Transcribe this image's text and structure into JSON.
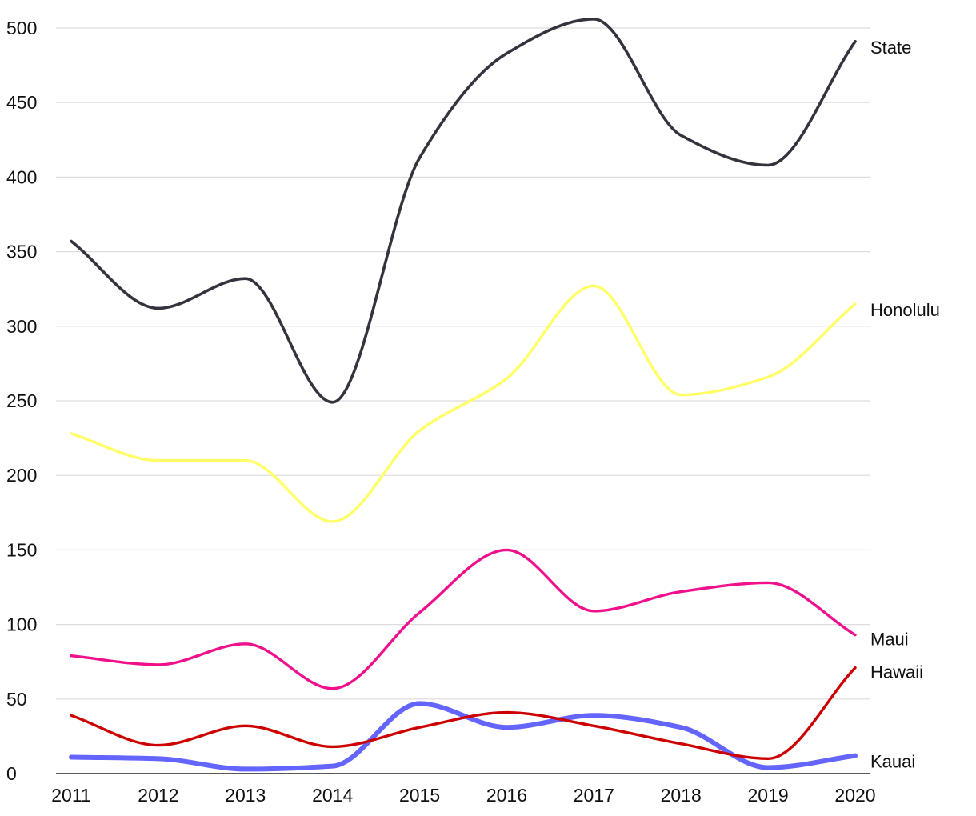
{
  "chart_data": {
    "type": "line",
    "title": "",
    "xlabel": "",
    "ylabel": "",
    "x": [
      "2011",
      "2012",
      "2013",
      "2014",
      "2015",
      "2016",
      "2017",
      "2018",
      "2019",
      "2020"
    ],
    "y_ticks": [
      "0",
      "50",
      "100",
      "150",
      "200",
      "250",
      "300",
      "350",
      "400",
      "450",
      "500"
    ],
    "ylim": [
      0,
      500
    ],
    "grid": true,
    "legend": "direct labels at line ends (right)",
    "series": [
      {
        "name": "State",
        "color": "#34343f",
        "values": [
          357,
          312,
          332,
          249,
          413,
          483,
          506,
          428,
          408,
          491
        ]
      },
      {
        "name": "Honolulu",
        "color": "#ffff66",
        "values": [
          228,
          210,
          210,
          169,
          230,
          265,
          327,
          254,
          266,
          315
        ]
      },
      {
        "name": "Maui",
        "color": "#f0108c",
        "values": [
          79,
          73,
          87,
          57,
          108,
          150,
          109,
          122,
          128,
          93
        ]
      },
      {
        "name": "Hawaii",
        "color": "#cc0000",
        "values": [
          39,
          19,
          32,
          18,
          31,
          41,
          32,
          20,
          10,
          71
        ]
      },
      {
        "name": "Kauai",
        "color": "#6464ff",
        "values": [
          11,
          10,
          3,
          5,
          47,
          31,
          39,
          31,
          4,
          12
        ]
      }
    ]
  }
}
